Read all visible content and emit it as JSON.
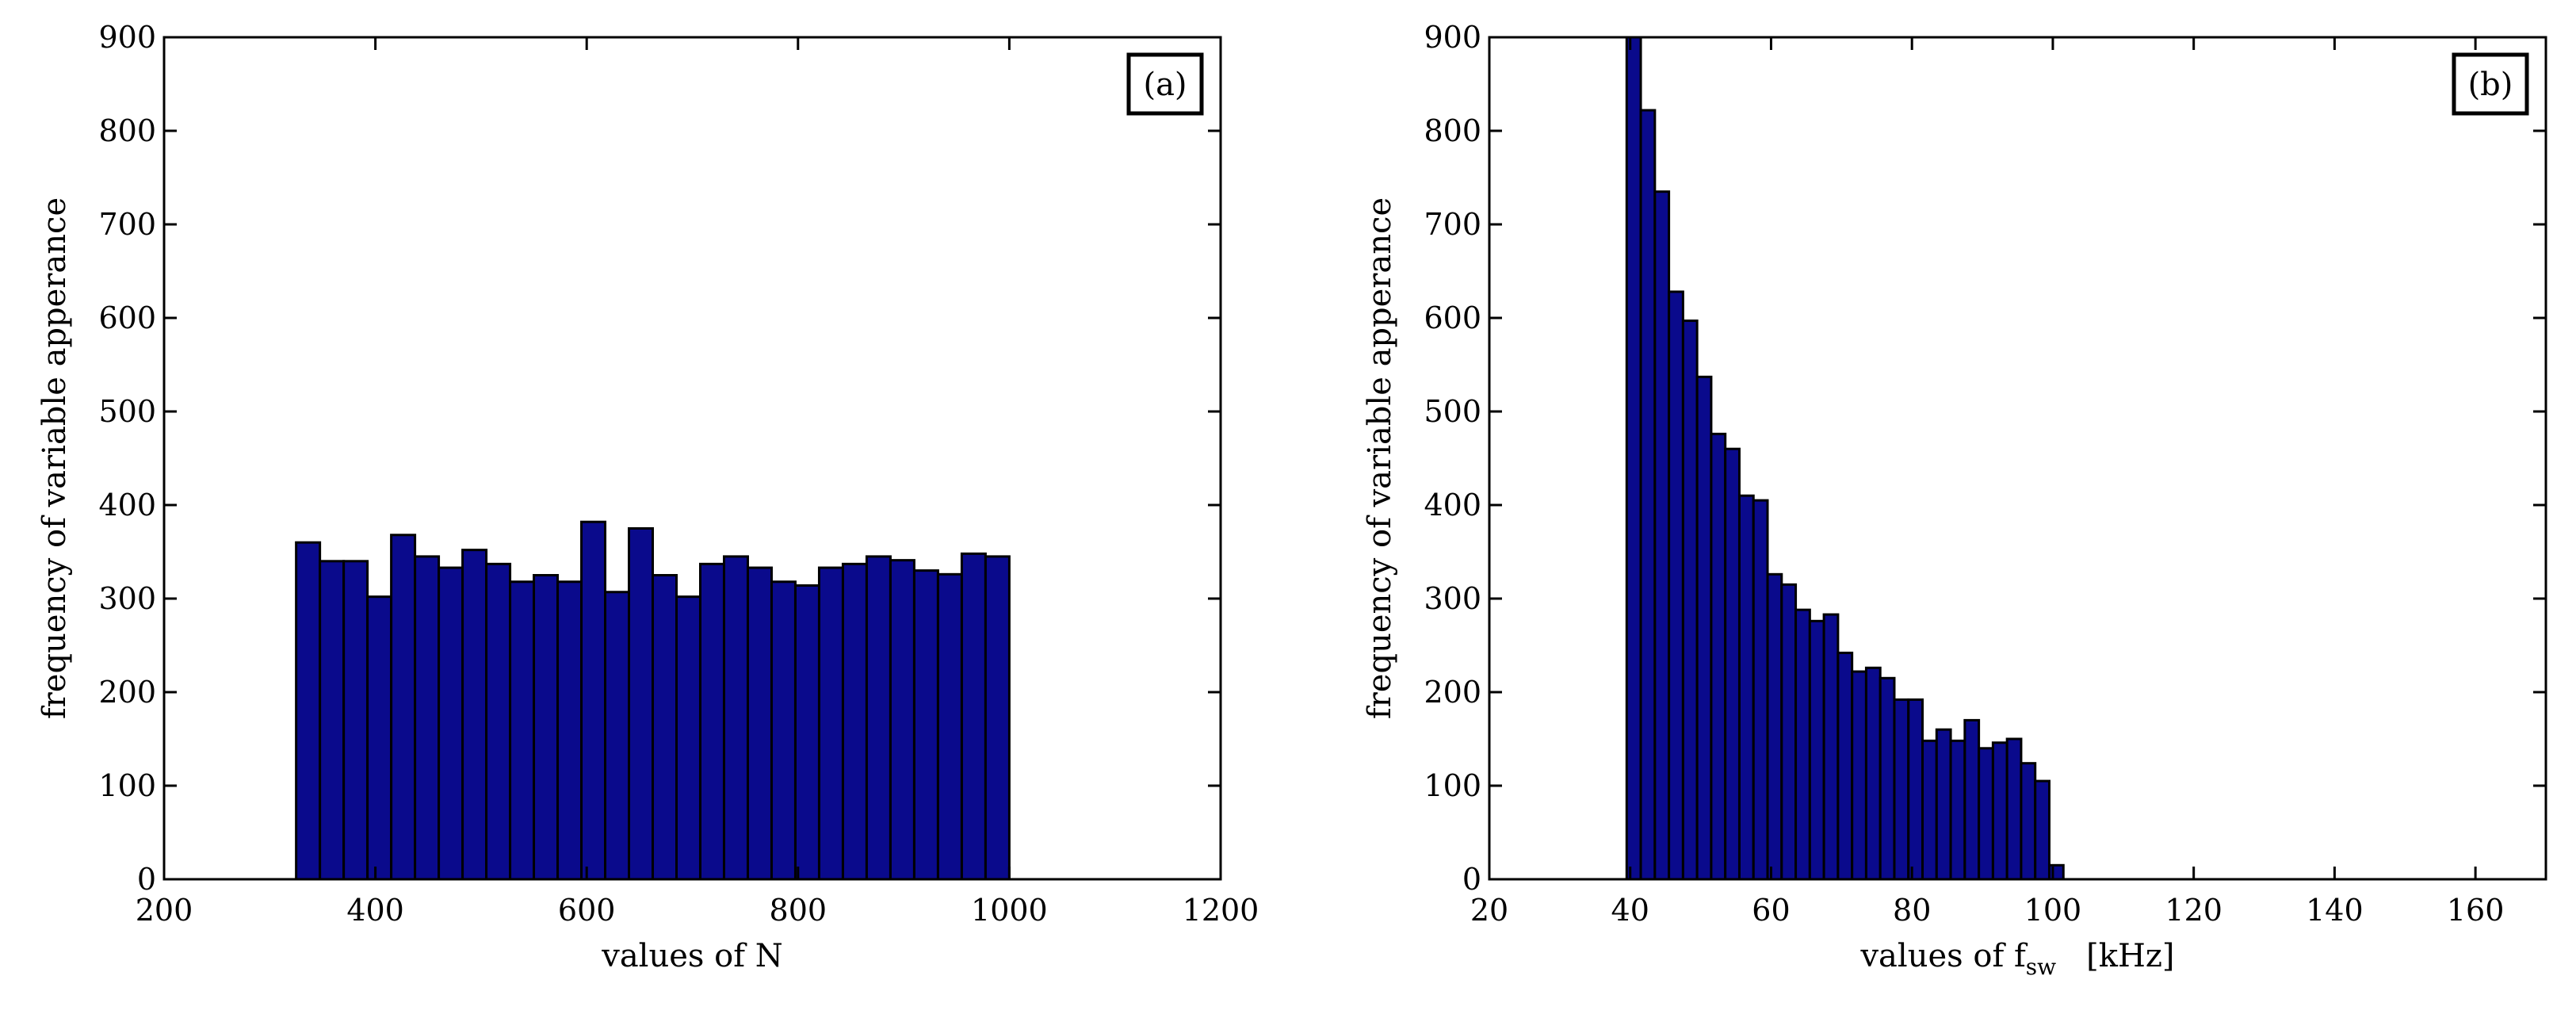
{
  "figure": {
    "bar_fill": "#0a0a8c",
    "bar_stroke": "#000000"
  },
  "chart_data": [
    {
      "type": "bar",
      "panel_label": "(a)",
      "title": "",
      "xlabel": "values of N",
      "ylabel": "frequency of variable apperance",
      "xlim": [
        200,
        1200
      ],
      "ylim": [
        0,
        900
      ],
      "xticks": [
        200,
        400,
        600,
        800,
        1000,
        1200
      ],
      "yticks": [
        0,
        100,
        200,
        300,
        400,
        500,
        600,
        700,
        800,
        900
      ],
      "grid": false,
      "legend": "none",
      "bin_start": 325,
      "bin_width": 22.5,
      "values": [
        360,
        340,
        340,
        302,
        368,
        345,
        333,
        352,
        337,
        318,
        325,
        318,
        382,
        307,
        375,
        325,
        302,
        337,
        345,
        333,
        318,
        314,
        333,
        337,
        345,
        341,
        330,
        326,
        348,
        345
      ]
    },
    {
      "type": "bar",
      "panel_label": "(b)",
      "title": "",
      "xlabel": "values of f",
      "xlabel_sub": "sw",
      "xlabel_unit": "[kHz]",
      "ylabel": "frequency of variable apperance",
      "xlim": [
        20,
        170
      ],
      "ylim": [
        0,
        900
      ],
      "xticks": [
        20,
        40,
        60,
        80,
        100,
        120,
        140,
        160
      ],
      "yticks": [
        0,
        100,
        200,
        300,
        400,
        500,
        600,
        700,
        800,
        900
      ],
      "grid": false,
      "legend": "none",
      "bin_start": 39.5,
      "bin_width": 2,
      "values": [
        900,
        822,
        735,
        628,
        597,
        537,
        476,
        460,
        410,
        405,
        326,
        315,
        288,
        276,
        283,
        242,
        222,
        226,
        215,
        192,
        192,
        148,
        160,
        148,
        170,
        140,
        146,
        150,
        124,
        105,
        15
      ]
    }
  ]
}
